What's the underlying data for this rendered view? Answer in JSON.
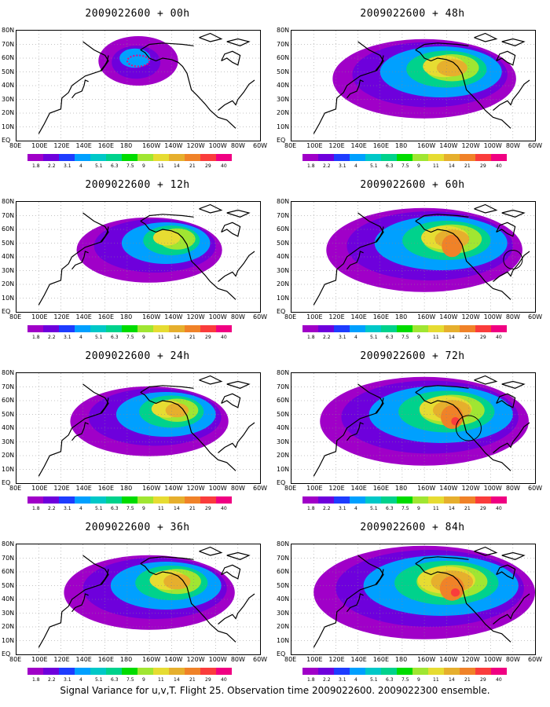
{
  "caption": "Signal Variance for u,v,T. Flight 25. Observation time 2009022600. 2009022300 ensemble.",
  "panels": [
    {
      "title": "2009022600 + 00h",
      "stage": 0
    },
    {
      "title": "2009022600 + 48h",
      "stage": 4
    },
    {
      "title": "2009022600 + 12h",
      "stage": 1
    },
    {
      "title": "2009022600 + 60h",
      "stage": 5
    },
    {
      "title": "2009022600 + 24h",
      "stage": 2
    },
    {
      "title": "2009022600 + 72h",
      "stage": 6
    },
    {
      "title": "2009022600 + 36h",
      "stage": 3
    },
    {
      "title": "2009022600 + 84h",
      "stage": 7
    }
  ],
  "lat_labels": [
    "80N",
    "70N",
    "60N",
    "50N",
    "40N",
    "30N",
    "20N",
    "10N",
    "EQ"
  ],
  "lon_labels": [
    "80E",
    "100E",
    "120E",
    "140E",
    "160E",
    "180",
    "160W",
    "140W",
    "120W",
    "100W",
    "80W",
    "60W"
  ],
  "colorbar": {
    "colors": [
      "#a000c8",
      "#6e00dc",
      "#1e3cff",
      "#00a0ff",
      "#00c8c8",
      "#00d28c",
      "#00dc00",
      "#a0e632",
      "#e6dc32",
      "#e6af2d",
      "#f08228",
      "#fa3c3c",
      "#f00082"
    ],
    "labels": [
      "1.8",
      "2.2",
      "3.1",
      "4",
      "5.1",
      "6.3",
      "7.5",
      "9",
      "11",
      "14",
      "21",
      "29",
      "40"
    ]
  }
}
